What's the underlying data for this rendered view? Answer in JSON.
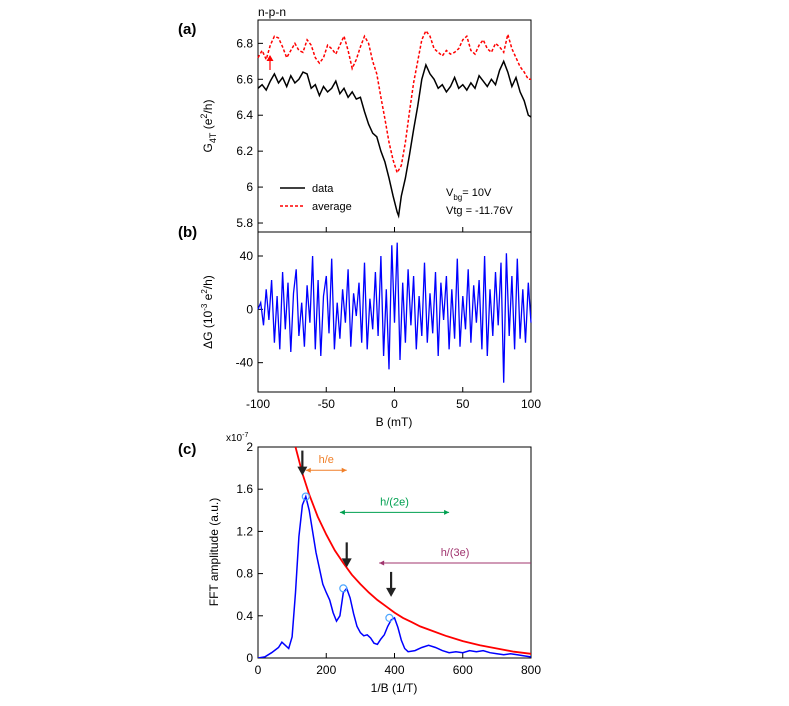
{
  "figure": {
    "panel_a_label": "(a)",
    "panel_b_label": "(b)",
    "panel_c_label": "(c)",
    "panel_a_title": "n-p-n",
    "panel_c_axis_multiplier": "x10",
    "panel_c_axis_multiplier_exp": "-7"
  },
  "chart_data": [
    {
      "id": "a",
      "type": "line",
      "xlim": [
        -100,
        100
      ],
      "ylim": [
        5.75,
        6.93
      ],
      "ylabel_main": "G",
      "ylabel_sub": "4T",
      "ylabel_unit_open": " (e",
      "ylabel_unit_sup": "2",
      "ylabel_unit_close": "/h)",
      "yticks": [
        "5.8",
        "6",
        "6.2",
        "6.4",
        "6.6",
        "6.8"
      ],
      "grid": false,
      "legend_position": "lower-left",
      "annotation_vbg_main": "V",
      "annotation_vbg_sub": "bg",
      "annotation_vbg_rest": "= 10V",
      "annotation_vtg": "Vtg = -11.76V",
      "colors": {
        "data": "#000000",
        "average": "#ff0000"
      },
      "series": [
        {
          "name": "data",
          "x": [
            -100,
            -97,
            -94,
            -91,
            -88,
            -85,
            -82,
            -79,
            -76,
            -73,
            -70,
            -67,
            -64,
            -61,
            -58,
            -55,
            -52,
            -49,
            -46,
            -43,
            -40,
            -37,
            -34,
            -31,
            -28,
            -25,
            -22,
            -19,
            -16,
            -13,
            -10,
            -7,
            -4,
            -1,
            2,
            3,
            5,
            8,
            11,
            14,
            17,
            20,
            23,
            26,
            29,
            32,
            35,
            38,
            41,
            44,
            47,
            50,
            53,
            56,
            59,
            62,
            65,
            68,
            71,
            74,
            77,
            80,
            83,
            86,
            89,
            92,
            95,
            98,
            100
          ],
          "values": [
            6.55,
            6.57,
            6.54,
            6.59,
            6.63,
            6.58,
            6.61,
            6.56,
            6.62,
            6.58,
            6.6,
            6.64,
            6.63,
            6.55,
            6.57,
            6.51,
            6.56,
            6.53,
            6.55,
            6.59,
            6.52,
            6.55,
            6.5,
            6.53,
            6.49,
            6.5,
            6.42,
            6.35,
            6.3,
            6.28,
            6.2,
            6.14,
            6.05,
            5.95,
            5.86,
            5.84,
            5.95,
            6.05,
            6.18,
            6.32,
            6.45,
            6.6,
            6.68,
            6.63,
            6.6,
            6.55,
            6.57,
            6.53,
            6.56,
            6.61,
            6.55,
            6.57,
            6.54,
            6.58,
            6.55,
            6.62,
            6.59,
            6.56,
            6.6,
            6.57,
            6.65,
            6.7,
            6.64,
            6.56,
            6.61,
            6.53,
            6.48,
            6.4,
            6.39
          ]
        },
        {
          "name": "average",
          "x": [
            -100,
            -97,
            -94,
            -91,
            -88,
            -85,
            -82,
            -79,
            -76,
            -73,
            -70,
            -67,
            -64,
            -61,
            -58,
            -55,
            -52,
            -49,
            -46,
            -43,
            -40,
            -37,
            -34,
            -31,
            -28,
            -25,
            -22,
            -19,
            -16,
            -13,
            -10,
            -7,
            -4,
            -1,
            2,
            5,
            8,
            11,
            14,
            17,
            20,
            23,
            26,
            29,
            32,
            35,
            38,
            41,
            44,
            47,
            50,
            53,
            56,
            59,
            62,
            65,
            68,
            71,
            74,
            77,
            80,
            83,
            86,
            89,
            92,
            95,
            98,
            100
          ],
          "values": [
            6.72,
            6.76,
            6.71,
            6.79,
            6.84,
            6.83,
            6.78,
            6.72,
            6.76,
            6.8,
            6.76,
            6.75,
            6.82,
            6.79,
            6.72,
            6.69,
            6.72,
            6.79,
            6.77,
            6.74,
            6.79,
            6.84,
            6.76,
            6.66,
            6.71,
            6.78,
            6.84,
            6.8,
            6.7,
            6.63,
            6.5,
            6.38,
            6.25,
            6.15,
            6.08,
            6.12,
            6.25,
            6.42,
            6.58,
            6.7,
            6.82,
            6.87,
            6.84,
            6.77,
            6.75,
            6.73,
            6.76,
            6.74,
            6.75,
            6.77,
            6.82,
            6.84,
            6.76,
            6.74,
            6.79,
            6.82,
            6.77,
            6.75,
            6.8,
            6.78,
            6.75,
            6.85,
            6.77,
            6.72,
            6.67,
            6.64,
            6.6,
            6.6
          ]
        }
      ]
    },
    {
      "id": "b",
      "type": "line",
      "xlim": [
        -100,
        100
      ],
      "ylim": [
        -62,
        58
      ],
      "xticks": [
        "-100",
        "-50",
        "0",
        "50",
        "100"
      ],
      "yticks": [
        "-40",
        "0",
        "40"
      ],
      "xlabel": "B (mT)",
      "ylabel_main": "ΔG (10",
      "ylabel_sup1": "-3",
      "ylabel_mid": " e",
      "ylabel_sup2": "2",
      "ylabel_close": "/h)",
      "grid": false,
      "color": "#0000ff",
      "series": [
        {
          "name": "",
          "x": [
            -100,
            -98,
            -96,
            -94,
            -92,
            -90,
            -88,
            -86,
            -84,
            -82,
            -80,
            -78,
            -76,
            -74,
            -72,
            -70,
            -68,
            -66,
            -64,
            -62,
            -60,
            -58,
            -56,
            -54,
            -52,
            -50,
            -48,
            -46,
            -44,
            -42,
            -40,
            -38,
            -36,
            -34,
            -32,
            -30,
            -28,
            -26,
            -24,
            -22,
            -20,
            -18,
            -16,
            -14,
            -12,
            -10,
            -8,
            -6,
            -4,
            -2,
            0,
            2,
            4,
            6,
            8,
            10,
            12,
            14,
            16,
            18,
            20,
            22,
            24,
            26,
            28,
            30,
            32,
            34,
            36,
            38,
            40,
            42,
            44,
            46,
            48,
            50,
            52,
            54,
            56,
            58,
            60,
            62,
            64,
            66,
            68,
            70,
            72,
            74,
            76,
            78,
            80,
            82,
            84,
            86,
            88,
            90,
            92,
            94,
            96,
            98,
            100
          ],
          "values": [
            0,
            5,
            -12,
            15,
            -8,
            22,
            -25,
            10,
            -30,
            28,
            -15,
            20,
            -32,
            12,
            30,
            -20,
            5,
            -28,
            18,
            -10,
            40,
            -30,
            22,
            -35,
            10,
            25,
            -18,
            38,
            -30,
            5,
            -22,
            15,
            -10,
            30,
            -28,
            12,
            -5,
            20,
            -25,
            35,
            -30,
            8,
            -15,
            28,
            -20,
            40,
            -35,
            15,
            -45,
            48,
            -10,
            50,
            -38,
            20,
            -25,
            30,
            -12,
            25,
            -30,
            10,
            -20,
            35,
            -25,
            12,
            -18,
            28,
            -35,
            20,
            -8,
            25,
            -30,
            15,
            -22,
            38,
            -28,
            10,
            -15,
            30,
            -25,
            18,
            -10,
            22,
            -30,
            40,
            -35,
            15,
            -20,
            28,
            -12,
            35,
            -55,
            42,
            -20,
            25,
            -30,
            38,
            -22,
            15,
            -25,
            20,
            -10
          ]
        }
      ]
    },
    {
      "id": "c",
      "type": "line",
      "xlim": [
        0,
        800
      ],
      "ylim": [
        0,
        2
      ],
      "xticks": [
        "0",
        "200",
        "400",
        "600",
        "800"
      ],
      "yticks": [
        "0",
        "0.4",
        "0.8",
        "1.2",
        "1.6",
        "2"
      ],
      "xlabel": "1/B (1/T)",
      "ylabel": "FFT amplitude (a.u.)",
      "grid": false,
      "annotations": {
        "h_e": "h/e",
        "h_2e": "h/(2e)",
        "h_3e": "h/(3e)"
      },
      "colors": {
        "fft": "#0000ff",
        "fit": "#ff0000",
        "h_e": "#f07f28",
        "h_2e": "#00a050",
        "h_3e": "#a0346e",
        "peak_marker": "#4da6ff",
        "arrow": "#222222"
      },
      "series": [
        {
          "name": "",
          "x": [
            0,
            20,
            40,
            60,
            70,
            80,
            90,
            100,
            110,
            120,
            130,
            140,
            150,
            160,
            170,
            180,
            190,
            200,
            210,
            220,
            230,
            240,
            250,
            260,
            270,
            280,
            290,
            300,
            310,
            320,
            330,
            340,
            350,
            360,
            370,
            380,
            390,
            400,
            410,
            420,
            430,
            440,
            460,
            480,
            500,
            520,
            540,
            560,
            580,
            600,
            620,
            640,
            660,
            680,
            700,
            720,
            740,
            760,
            780,
            800
          ],
          "values": [
            0,
            0.01,
            0.05,
            0.1,
            0.15,
            0.12,
            0.09,
            0.2,
            0.62,
            1.15,
            1.45,
            1.53,
            1.4,
            1.2,
            1.0,
            0.85,
            0.7,
            0.62,
            0.55,
            0.43,
            0.35,
            0.4,
            0.62,
            0.66,
            0.57,
            0.42,
            0.3,
            0.24,
            0.21,
            0.22,
            0.19,
            0.14,
            0.13,
            0.18,
            0.22,
            0.3,
            0.36,
            0.38,
            0.29,
            0.17,
            0.09,
            0.06,
            0.07,
            0.1,
            0.12,
            0.1,
            0.07,
            0.05,
            0.06,
            0.05,
            0.07,
            0.06,
            0.07,
            0.05,
            0.04,
            0.03,
            0.04,
            0.03,
            0.02,
            0.01
          ]
        },
        {
          "name": "",
          "x": [
            110,
            130,
            150,
            175,
            200,
            225,
            250,
            275,
            300,
            325,
            350,
            375,
            400,
            425,
            450,
            475,
            500,
            550,
            600,
            650,
            700,
            750,
            800
          ],
          "values": [
            2.0,
            1.75,
            1.55,
            1.34,
            1.17,
            1.02,
            0.9,
            0.79,
            0.7,
            0.62,
            0.55,
            0.49,
            0.43,
            0.38,
            0.34,
            0.3,
            0.27,
            0.21,
            0.16,
            0.12,
            0.09,
            0.06,
            0.04
          ]
        }
      ],
      "peaks": [
        {
          "x": 140,
          "y": 1.53
        },
        {
          "x": 250,
          "y": 0.66
        },
        {
          "x": 385,
          "y": 0.38
        }
      ],
      "arrows_x": [
        130,
        260,
        390
      ],
      "ranges": [
        {
          "key": "h_e",
          "from": 140,
          "to": 260,
          "y": 1.78
        },
        {
          "key": "h_2e",
          "from": 240,
          "to": 560,
          "y": 1.38
        },
        {
          "key": "h_3e",
          "from": 355,
          "to": 800,
          "y": 0.9
        }
      ]
    }
  ]
}
